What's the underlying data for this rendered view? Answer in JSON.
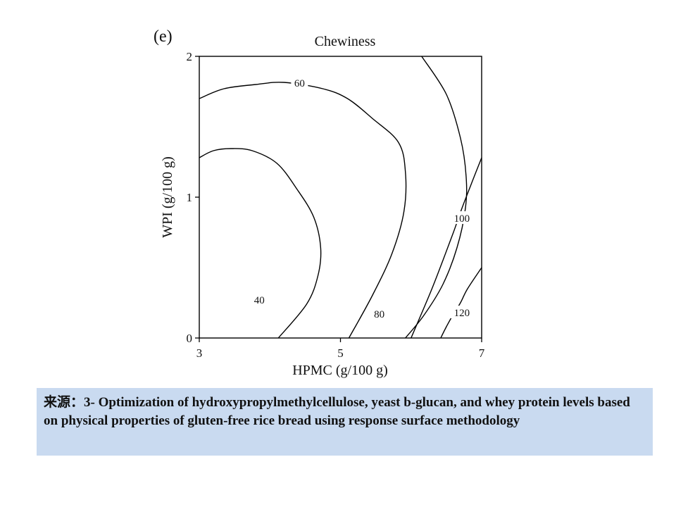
{
  "figure": {
    "panel_label": "(e)",
    "caption": "来源：3- Optimization of hydroxypropylmethylcellulose, yeast b-glucan, and whey protein levels based on physical properties of gluten-free rice bread using response surface methodology"
  },
  "chart_data": {
    "type": "contour",
    "title": "Chewiness",
    "xlabel": "HPMC (g/100 g)",
    "ylabel": "WPI (g/100 g)",
    "xlim": [
      3,
      7
    ],
    "ylim": [
      0,
      2
    ],
    "xticks": [
      3,
      5,
      7
    ],
    "yticks": [
      0,
      1,
      2
    ],
    "grid": false,
    "line_color": "#000000",
    "contours": [
      {
        "level": 40,
        "label": "40",
        "label_at": [
          3.85,
          0.27
        ],
        "points": [
          [
            3.0,
            1.28
          ],
          [
            3.2,
            1.33
          ],
          [
            3.45,
            1.345
          ],
          [
            3.75,
            1.33
          ],
          [
            4.1,
            1.24
          ],
          [
            4.38,
            1.06
          ],
          [
            4.62,
            0.86
          ],
          [
            4.72,
            0.64
          ],
          [
            4.68,
            0.44
          ],
          [
            4.52,
            0.24
          ],
          [
            4.12,
            0.0
          ]
        ]
      },
      {
        "level": 60,
        "label": "60",
        "label_at": [
          4.42,
          1.81
        ],
        "points": [
          [
            3.0,
            1.7
          ],
          [
            3.35,
            1.77
          ],
          [
            3.8,
            1.8
          ],
          [
            4.2,
            1.815
          ],
          [
            4.75,
            1.77
          ],
          [
            5.1,
            1.7
          ],
          [
            5.45,
            1.56
          ],
          [
            5.82,
            1.39
          ],
          [
            5.92,
            1.18
          ],
          [
            5.9,
            0.9
          ],
          [
            5.73,
            0.6
          ],
          [
            5.45,
            0.3
          ],
          [
            5.12,
            0.0
          ]
        ]
      },
      {
        "level": 80,
        "label": "80",
        "label_at": [
          5.55,
          0.17
        ],
        "points": [
          [
            6.15,
            2.0
          ],
          [
            6.5,
            1.73
          ],
          [
            6.7,
            1.42
          ],
          [
            6.78,
            1.15
          ],
          [
            6.77,
            0.92
          ],
          [
            6.65,
            0.64
          ],
          [
            6.45,
            0.38
          ],
          [
            6.18,
            0.16
          ],
          [
            5.92,
            0.0
          ]
        ]
      },
      {
        "level": 100,
        "label": "100",
        "label_at": [
          6.72,
          0.85
        ],
        "points": [
          [
            7.0,
            1.28
          ],
          [
            6.85,
            1.09
          ],
          [
            6.72,
            0.92
          ],
          [
            6.6,
            0.75
          ],
          [
            6.45,
            0.55
          ],
          [
            6.28,
            0.33
          ],
          [
            6.0,
            0.0
          ]
        ]
      },
      {
        "level": 120,
        "label": "120",
        "label_at": [
          6.72,
          0.18
        ],
        "points": [
          [
            7.0,
            0.5
          ],
          [
            6.8,
            0.35
          ],
          [
            6.7,
            0.25
          ],
          [
            6.6,
            0.17
          ],
          [
            6.5,
            0.08
          ],
          [
            6.42,
            0.0
          ]
        ]
      }
    ]
  }
}
